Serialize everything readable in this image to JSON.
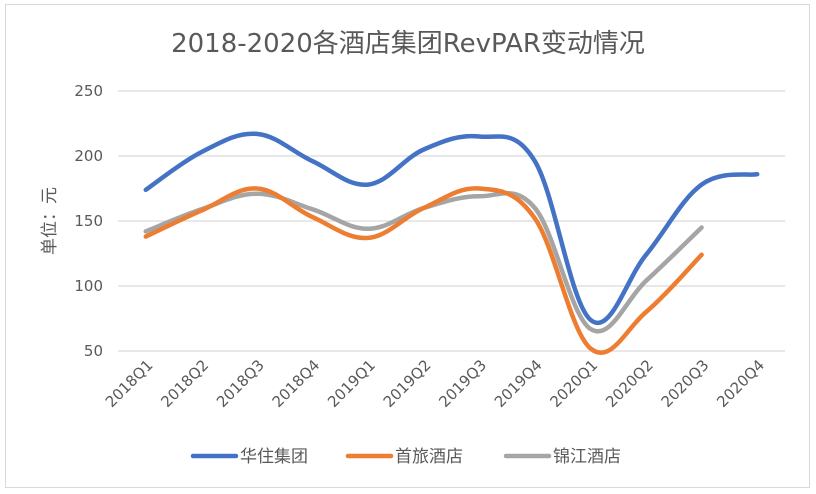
{
  "chart_data": {
    "type": "line",
    "title": "2018-2020各酒店集团RevPAR变动情况",
    "xlabel": "",
    "ylabel": "单位：元",
    "ylim": [
      50,
      250
    ],
    "yticks": [
      "250",
      "200",
      "150",
      "100",
      "50"
    ],
    "ytick_values": [
      250,
      200,
      150,
      100,
      50
    ],
    "grid": true,
    "legend_position": "bottom",
    "categories": [
      "2018Q1",
      "2018Q2",
      "2018Q3",
      "2018Q4",
      "2019Q1",
      "2019Q2",
      "2019Q3",
      "2019Q4",
      "2020Q1",
      "2020Q2",
      "2020Q3",
      "2020Q4"
    ],
    "series": [
      {
        "name": "华住集团",
        "color": "#4472C4",
        "values": [
          174,
          203,
          217,
          196,
          178,
          205,
          215,
          196,
          74,
          124,
          178,
          186
        ]
      },
      {
        "name": "首旅酒店",
        "color": "#ED7D31",
        "values": [
          138,
          158,
          175,
          153,
          137,
          160,
          175,
          152,
          52,
          80,
          124,
          null
        ]
      },
      {
        "name": "锦江酒店",
        "color": "#A5A5A5",
        "values": [
          142,
          159,
          171,
          159,
          144,
          160,
          169,
          160,
          67,
          104,
          145,
          null
        ]
      }
    ]
  }
}
